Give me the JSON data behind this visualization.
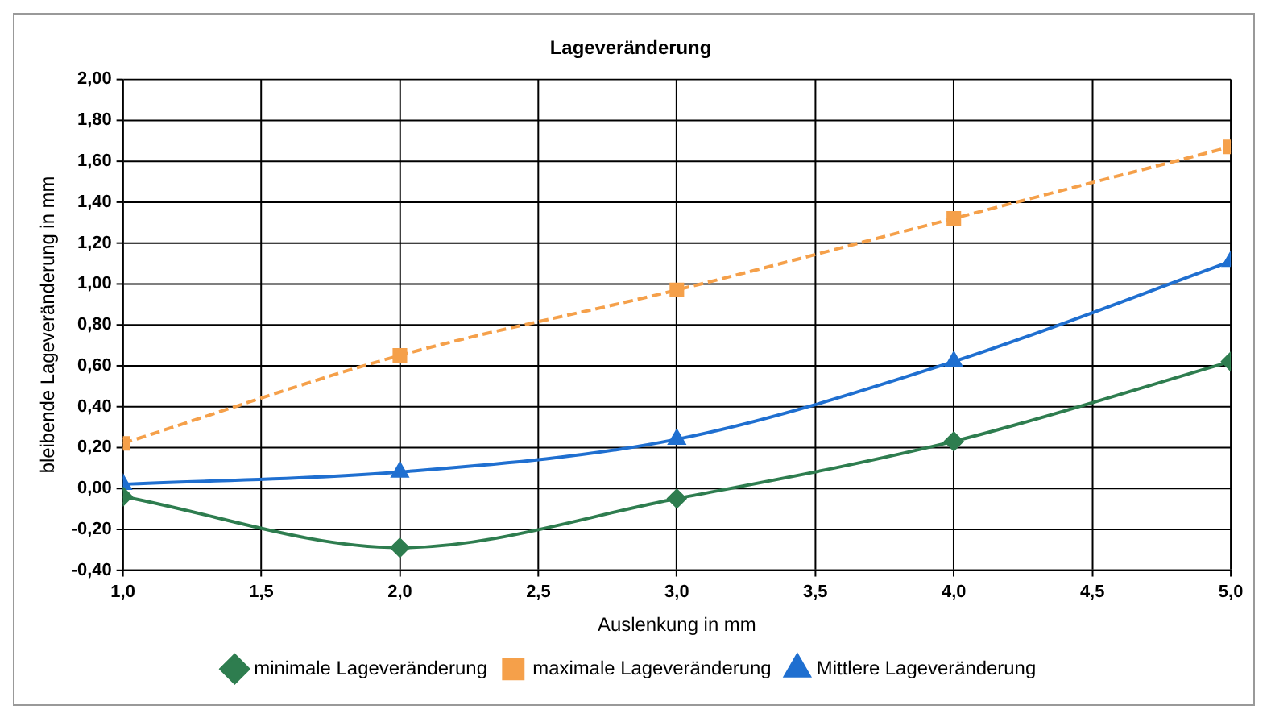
{
  "chart_data": {
    "type": "line",
    "title": "Lageveränderung",
    "xlabel": "Auslenkung in mm",
    "ylabel": "bleibende Lageveränderung in mm",
    "x": [
      1,
      2,
      3,
      4,
      5
    ],
    "series": [
      {
        "name": "minimale Lageveränderung",
        "color": "#2e7d4f",
        "values": [
          -0.04,
          -0.29,
          -0.05,
          0.23,
          0.62
        ],
        "marker": "diamond",
        "line_style": "solid"
      },
      {
        "name": "maximale Lageveränderung",
        "color": "#f5a04a",
        "values": [
          0.22,
          0.65,
          0.97,
          1.32,
          1.67
        ],
        "marker": "square",
        "line_style": "dashed"
      },
      {
        "name": "Mittlere Lageveränderung",
        "color": "#1f6fd0",
        "values": [
          0.02,
          0.08,
          0.24,
          0.62,
          1.11
        ],
        "marker": "triangle",
        "line_style": "solid"
      }
    ],
    "xlim": [
      1,
      5
    ],
    "xticks": [
      {
        "value": 1,
        "label": "1,0"
      },
      {
        "value": 1.5,
        "label": "1,5"
      },
      {
        "value": 2,
        "label": "2,0"
      },
      {
        "value": 2.5,
        "label": "2,5"
      },
      {
        "value": 3,
        "label": "3,0"
      },
      {
        "value": 3.5,
        "label": "3,5"
      },
      {
        "value": 4,
        "label": "4,0"
      },
      {
        "value": 4.5,
        "label": "4,5"
      },
      {
        "value": 5,
        "label": "5,0"
      }
    ],
    "ylim": [
      -0.4,
      2
    ],
    "yticks": [
      {
        "value": -0.4,
        "label": "-0,40"
      },
      {
        "value": -0.2,
        "label": "-0,20"
      },
      {
        "value": 0,
        "label": "0,00"
      },
      {
        "value": 0.2,
        "label": "0,20"
      },
      {
        "value": 0.4,
        "label": "0,40"
      },
      {
        "value": 0.6,
        "label": "0,60"
      },
      {
        "value": 0.8,
        "label": "0,80"
      },
      {
        "value": 1,
        "label": "1,00"
      },
      {
        "value": 1.2,
        "label": "1,20"
      },
      {
        "value": 1.4,
        "label": "1,40"
      },
      {
        "value": 1.6,
        "label": "1,60"
      },
      {
        "value": 1.8,
        "label": "1,80"
      },
      {
        "value": 2,
        "label": "2,00"
      }
    ],
    "grid": true,
    "legend": "bottom"
  }
}
